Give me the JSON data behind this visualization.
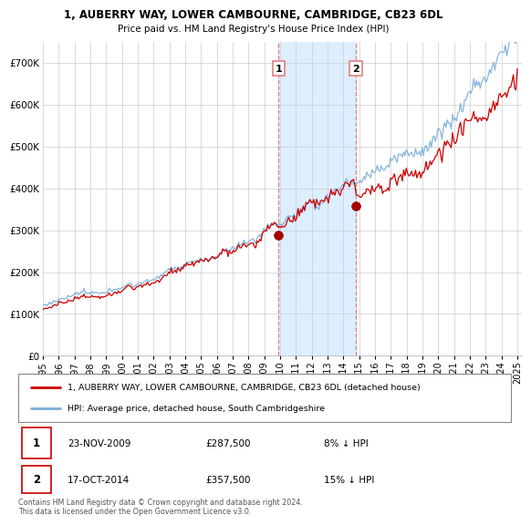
{
  "title_line1": "1, AUBERRY WAY, LOWER CAMBOURNE, CAMBRIDGE, CB23 6DL",
  "title_line2": "Price paid vs. HM Land Registry's House Price Index (HPI)",
  "ylim": [
    0,
    750000
  ],
  "yticks": [
    0,
    100000,
    200000,
    300000,
    400000,
    500000,
    600000,
    700000
  ],
  "sale1_date_num": 2009.9,
  "sale1_price": 287500,
  "sale1_label": "1",
  "sale1_date_str": "23-NOV-2009",
  "sale1_price_str": "£287,500",
  "sale1_pct_str": "8% ↓ HPI",
  "sale2_date_num": 2014.79,
  "sale2_price": 357500,
  "sale2_label": "2",
  "sale2_date_str": "17-OCT-2014",
  "sale2_price_str": "£357,500",
  "sale2_pct_str": "15% ↓ HPI",
  "legend_line1": "1, AUBERRY WAY, LOWER CAMBOURNE, CAMBRIDGE, CB23 6DL (detached house)",
  "legend_line2": "HPI: Average price, detached house, South Cambridgeshire",
  "footer": "Contains HM Land Registry data © Crown copyright and database right 2024.\nThis data is licensed under the Open Government Licence v3.0.",
  "line_color_sold": "#cc0000",
  "line_color_hpi": "#7aadda",
  "shaded_color": "#ddeeff",
  "vline_color": "#e08080"
}
